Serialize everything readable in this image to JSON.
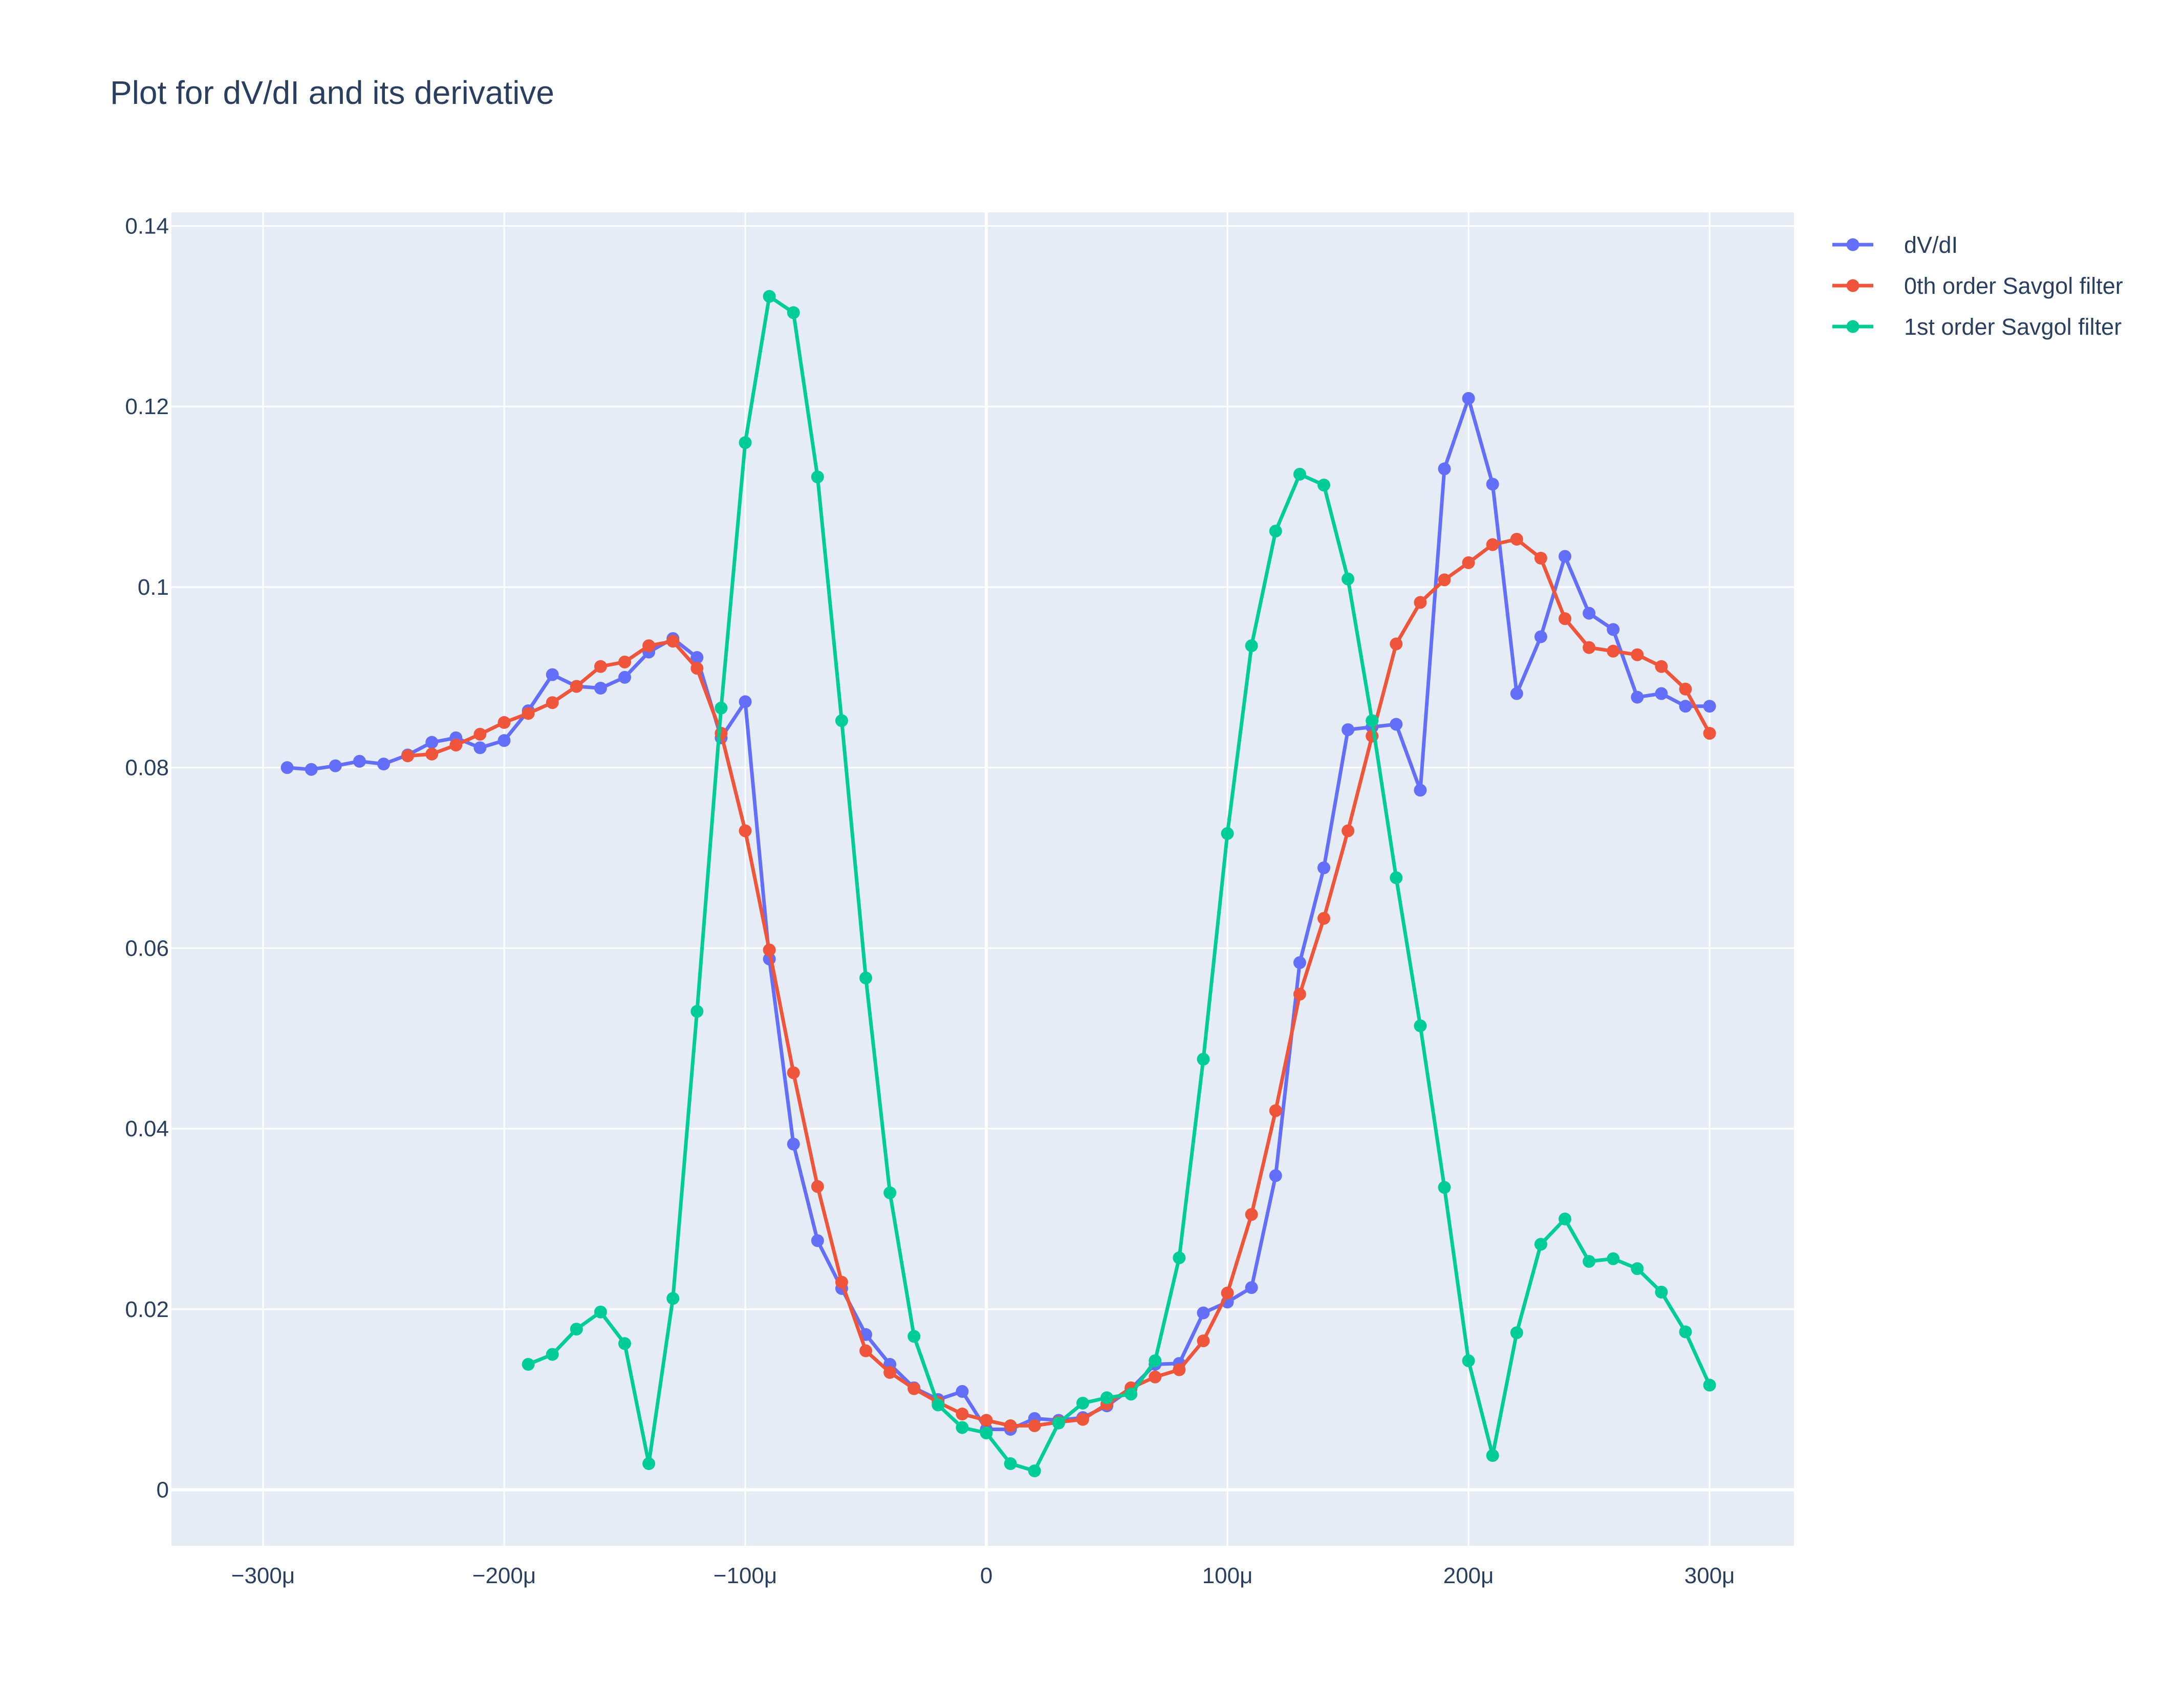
{
  "chart_data": {
    "type": "line",
    "title": "Plot for dV/dI and its derivative",
    "xlabel": "",
    "ylabel": "",
    "xlim": [
      -0.000338,
      0.000335
    ],
    "ylim": [
      -0.0062,
      0.1415
    ],
    "x_tick_values": [
      -0.0003,
      -0.0002,
      -0.0001,
      0,
      0.0001,
      0.0002,
      0.0003
    ],
    "x_tick_labels": [
      "−300μ",
      "−200μ",
      "−100μ",
      "0",
      "100μ",
      "200μ",
      "300μ"
    ],
    "y_tick_values": [
      0,
      0.02,
      0.04,
      0.06,
      0.08,
      0.1,
      0.12,
      0.14
    ],
    "y_tick_labels": [
      "0",
      "0.02",
      "0.04",
      "0.06",
      "0.08",
      "0.1",
      "0.12",
      "0.14"
    ],
    "grid": true,
    "legend_position": "top-right",
    "plot_bg": "#e5ecf6",
    "series": [
      {
        "name": "dV/dI",
        "color": "#636efa",
        "x": [
          -0.00029,
          -0.00028,
          -0.00027,
          -0.00026,
          -0.00025,
          -0.00024,
          -0.00023,
          -0.00022,
          -0.00021,
          -0.0002,
          -0.00019,
          -0.00018,
          -0.00017,
          -0.00016,
          -0.00015,
          -0.00014,
          -0.00013,
          -0.00012,
          -0.00011,
          -0.0001,
          -9e-05,
          -8e-05,
          -7e-05,
          -6e-05,
          -5e-05,
          -4e-05,
          -3e-05,
          -2e-05,
          -1e-05,
          0,
          1e-05,
          2e-05,
          3e-05,
          4e-05,
          5e-05,
          6e-05,
          7e-05,
          8e-05,
          9e-05,
          0.0001,
          0.00011,
          0.00012,
          0.00013,
          0.00014,
          0.00015,
          0.00016,
          0.00017,
          0.00018,
          0.00019,
          0.0002,
          0.00021,
          0.00022,
          0.00023,
          0.00024,
          0.00025,
          0.00026,
          0.00027,
          0.00028,
          0.00029,
          0.0003
        ],
        "y": [
          0.08,
          0.0798,
          0.0802,
          0.0807,
          0.0804,
          0.0814,
          0.0828,
          0.0833,
          0.0822,
          0.083,
          0.0863,
          0.0903,
          0.089,
          0.0888,
          0.09,
          0.0928,
          0.0943,
          0.0922,
          0.0833,
          0.0873,
          0.0588,
          0.0383,
          0.0276,
          0.0223,
          0.0172,
          0.0139,
          0.0113,
          0.01,
          0.0109,
          0.0067,
          0.0067,
          0.0079,
          0.0077,
          0.008,
          0.0093,
          0.0112,
          0.0139,
          0.014,
          0.0196,
          0.0208,
          0.0224,
          0.0348,
          0.0584,
          0.0689,
          0.0842,
          0.0845,
          0.0848,
          0.0775,
          0.1131,
          0.1209,
          0.1114,
          0.0882,
          0.0945,
          0.1034,
          0.0971,
          0.0953,
          0.0878,
          0.0882,
          0.0868,
          0.0868
        ]
      },
      {
        "name": "0th order Savgol filter",
        "color": "#ef553b",
        "x": [
          -0.00024,
          -0.00023,
          -0.00022,
          -0.00021,
          -0.0002,
          -0.00019,
          -0.00018,
          -0.00017,
          -0.00016,
          -0.00015,
          -0.00014,
          -0.00013,
          -0.00012,
          -0.00011,
          -0.0001,
          -9e-05,
          -8e-05,
          -7e-05,
          -6e-05,
          -5e-05,
          -4e-05,
          -3e-05,
          -2e-05,
          -1e-05,
          0,
          1e-05,
          2e-05,
          3e-05,
          4e-05,
          5e-05,
          6e-05,
          7e-05,
          8e-05,
          9e-05,
          0.0001,
          0.00011,
          0.00012,
          0.00013,
          0.00014,
          0.00015,
          0.00016,
          0.00017,
          0.00018,
          0.00019,
          0.0002,
          0.00021,
          0.00022,
          0.00023,
          0.00024,
          0.00025,
          0.00026,
          0.00027,
          0.00028,
          0.00029,
          0.0003
        ],
        "y": [
          0.0813,
          0.0815,
          0.0825,
          0.0837,
          0.085,
          0.086,
          0.0872,
          0.089,
          0.0912,
          0.0917,
          0.0935,
          0.094,
          0.091,
          0.0838,
          0.073,
          0.0598,
          0.0462,
          0.0336,
          0.023,
          0.0154,
          0.013,
          0.0112,
          0.0097,
          0.0084,
          0.0077,
          0.0071,
          0.0071,
          0.0075,
          0.0078,
          0.0095,
          0.0113,
          0.0125,
          0.0133,
          0.0165,
          0.0218,
          0.0305,
          0.042,
          0.0549,
          0.0633,
          0.073,
          0.0835,
          0.0937,
          0.0983,
          0.1008,
          0.1027,
          0.1047,
          0.1053,
          0.1032,
          0.0965,
          0.0933,
          0.0929,
          0.0925,
          0.0912,
          0.0887,
          0.0838
        ]
      },
      {
        "name": "1st order Savgol filter",
        "color": "#00cc96",
        "x": [
          -0.00019,
          -0.00018,
          -0.00017,
          -0.00016,
          -0.00015,
          -0.00014,
          -0.00013,
          -0.00012,
          -0.00011,
          -0.0001,
          -9e-05,
          -8e-05,
          -7e-05,
          -6e-05,
          -5e-05,
          -4e-05,
          -3e-05,
          -2e-05,
          -1e-05,
          0,
          1e-05,
          2e-05,
          3e-05,
          4e-05,
          5e-05,
          6e-05,
          7e-05,
          8e-05,
          9e-05,
          0.0001,
          0.00011,
          0.00012,
          0.00013,
          0.00014,
          0.00015,
          0.00016,
          0.00017,
          0.00018,
          0.00019,
          0.0002,
          0.00021,
          0.00022,
          0.00023,
          0.00024,
          0.00025,
          0.00026,
          0.00027,
          0.00028,
          0.00029,
          0.0003
        ],
        "y": [
          0.0139,
          0.015,
          0.0178,
          0.0197,
          0.0162,
          0.0029,
          0.0212,
          0.053,
          0.0866,
          0.116,
          0.1322,
          0.1304,
          0.1122,
          0.0852,
          0.0567,
          0.0329,
          0.017,
          0.0094,
          0.0069,
          0.0063,
          0.0029,
          0.0021,
          0.0074,
          0.0096,
          0.0102,
          0.0106,
          0.0143,
          0.0257,
          0.0477,
          0.0727,
          0.0935,
          0.1062,
          0.1125,
          0.1113,
          0.1009,
          0.0852,
          0.0678,
          0.0514,
          0.0335,
          0.0143,
          0.0038,
          0.0174,
          0.0272,
          0.03,
          0.0253,
          0.0256,
          0.0245,
          0.0219,
          0.0175,
          0.0116
        ]
      }
    ]
  }
}
